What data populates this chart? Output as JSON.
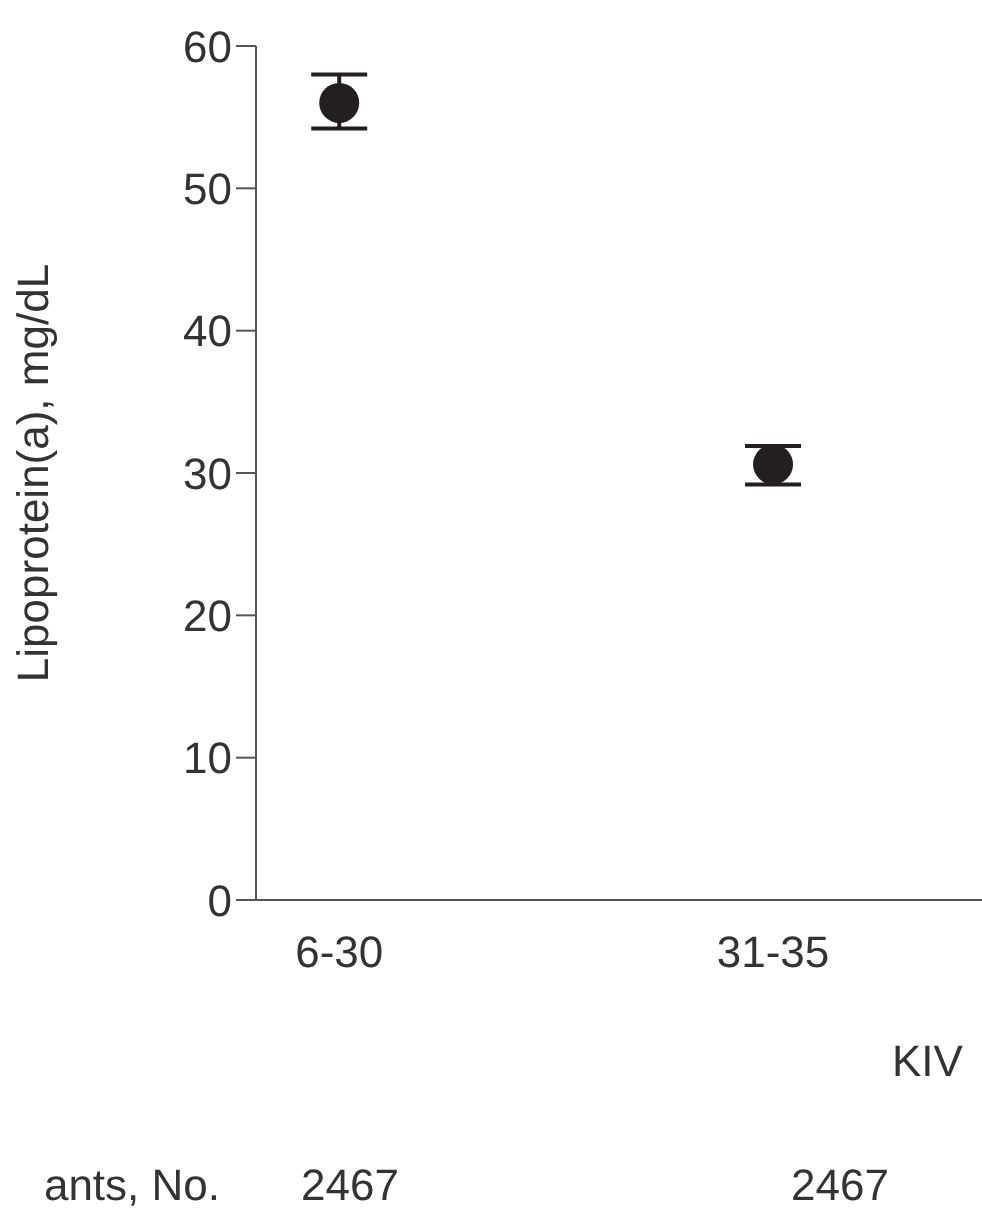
{
  "chart_data": {
    "type": "scatter",
    "xlabel": "KIV",
    "ylabel": "Lipoprotein(a), mg/dL",
    "categories": [
      "6-30",
      "31-35"
    ],
    "series": [
      {
        "color": "#231f20",
        "values": [
          56.0,
          30.6
        ],
        "errors": [
          [
            54.2,
            58.0
          ],
          [
            29.2,
            31.9
          ]
        ]
      }
    ],
    "ylim": [
      0,
      60
    ],
    "yticks": [
      0,
      10,
      20,
      30,
      40,
      50,
      60
    ],
    "grid": false,
    "marker": "circle",
    "annotations": [
      "ants, No.",
      "2467",
      "2467"
    ]
  }
}
